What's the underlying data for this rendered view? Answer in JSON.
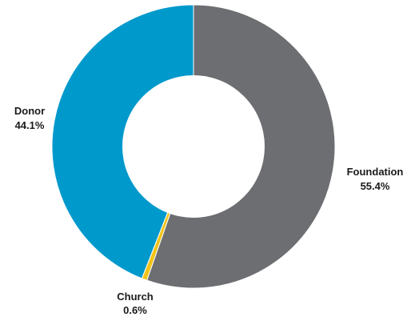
{
  "chart_data": {
    "type": "pie",
    "donut": true,
    "categories": [
      "Foundation",
      "Church",
      "Donor"
    ],
    "values": [
      55.4,
      0.6,
      44.1
    ],
    "labels": [
      "55.4%",
      "0.6%",
      "44.1%"
    ],
    "colors": [
      "#6d6e71",
      "#f2c318",
      "#0099cc"
    ],
    "start": "top",
    "direction": "clockwise",
    "legend": "none",
    "title": ""
  }
}
